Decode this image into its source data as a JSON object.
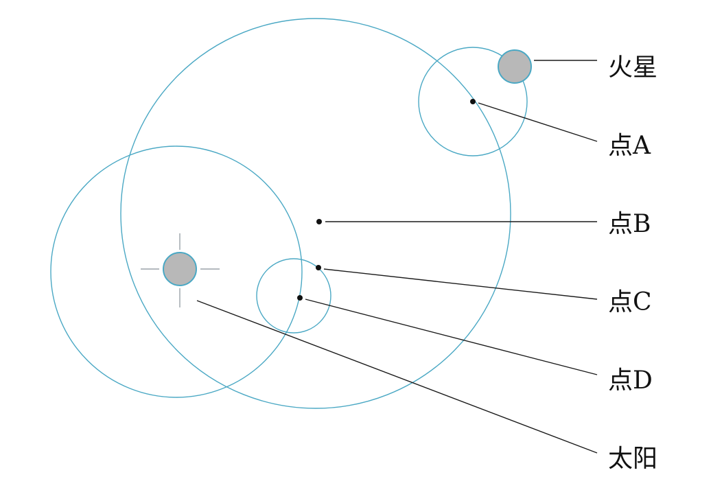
{
  "labels": {
    "mars": "火星",
    "point_a": "点A",
    "point_b": "点B",
    "point_c": "点C",
    "point_d": "点D",
    "sun": "太阳"
  },
  "colors": {
    "orbit": "#4aa8c4",
    "body_fill": "#b8b8b8",
    "leader": "#1a1a1a"
  }
}
